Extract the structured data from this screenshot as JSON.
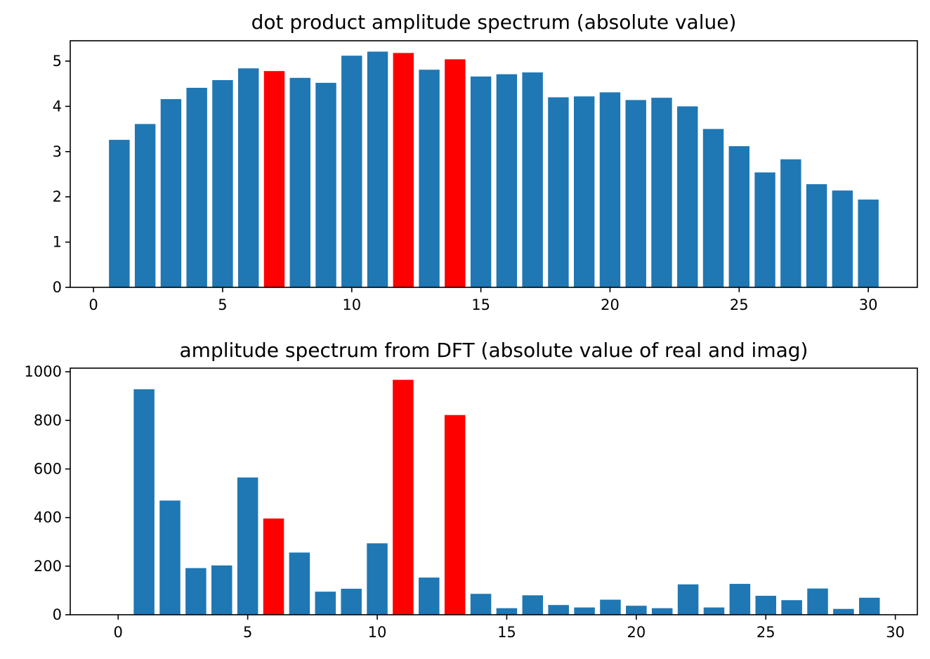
{
  "chart_data": [
    {
      "type": "bar",
      "title": "dot product amplitude spectrum (absolute value)",
      "xlabel": "",
      "ylabel": "",
      "xlim": [
        -0.9,
        31.9
      ],
      "ylim": [
        0,
        5.45
      ],
      "xticks": [
        0,
        5,
        10,
        15,
        20,
        25,
        30
      ],
      "yticks": [
        0,
        1,
        2,
        3,
        4,
        5
      ],
      "bar_width": 0.8,
      "grid": false,
      "colors": {
        "default": "#1f77b4",
        "highlight": "#ff0000"
      },
      "highlight_x": [
        7,
        12,
        14
      ],
      "x": [
        1,
        2,
        3,
        4,
        5,
        6,
        7,
        8,
        9,
        10,
        11,
        12,
        13,
        14,
        15,
        16,
        17,
        18,
        19,
        20,
        21,
        22,
        23,
        24,
        25,
        26,
        27,
        28,
        29,
        30
      ],
      "values": [
        3.26,
        3.61,
        4.16,
        4.41,
        4.58,
        4.84,
        4.78,
        4.63,
        4.52,
        5.12,
        5.21,
        5.18,
        4.81,
        5.04,
        4.66,
        4.71,
        4.75,
        4.2,
        4.22,
        4.31,
        4.14,
        4.19,
        4.0,
        3.5,
        3.12,
        2.54,
        2.83,
        2.28,
        2.14,
        1.94
      ]
    },
    {
      "type": "bar",
      "title": "amplitude spectrum from DFT (absolute value of real and imag)",
      "xlabel": "",
      "ylabel": "",
      "xlim": [
        -1.85,
        30.85
      ],
      "ylim": [
        0,
        1015
      ],
      "xticks": [
        0,
        5,
        10,
        15,
        20,
        25,
        30
      ],
      "yticks": [
        0,
        200,
        400,
        600,
        800,
        1000
      ],
      "bar_width": 0.8,
      "grid": false,
      "colors": {
        "default": "#1f77b4",
        "highlight": "#ff0000"
      },
      "highlight_x": [
        6,
        11,
        13
      ],
      "x": [
        1,
        2,
        3,
        4,
        5,
        6,
        7,
        8,
        9,
        10,
        11,
        12,
        13,
        14,
        15,
        16,
        17,
        18,
        19,
        20,
        21,
        22,
        23,
        24,
        25,
        26,
        27,
        28,
        29
      ],
      "values": [
        928,
        470,
        192,
        203,
        565,
        396,
        256,
        95,
        107,
        294,
        967,
        153,
        822,
        86,
        27,
        80,
        40,
        30,
        62,
        37,
        27,
        125,
        30,
        127,
        78,
        60,
        108,
        24,
        70
      ]
    }
  ]
}
